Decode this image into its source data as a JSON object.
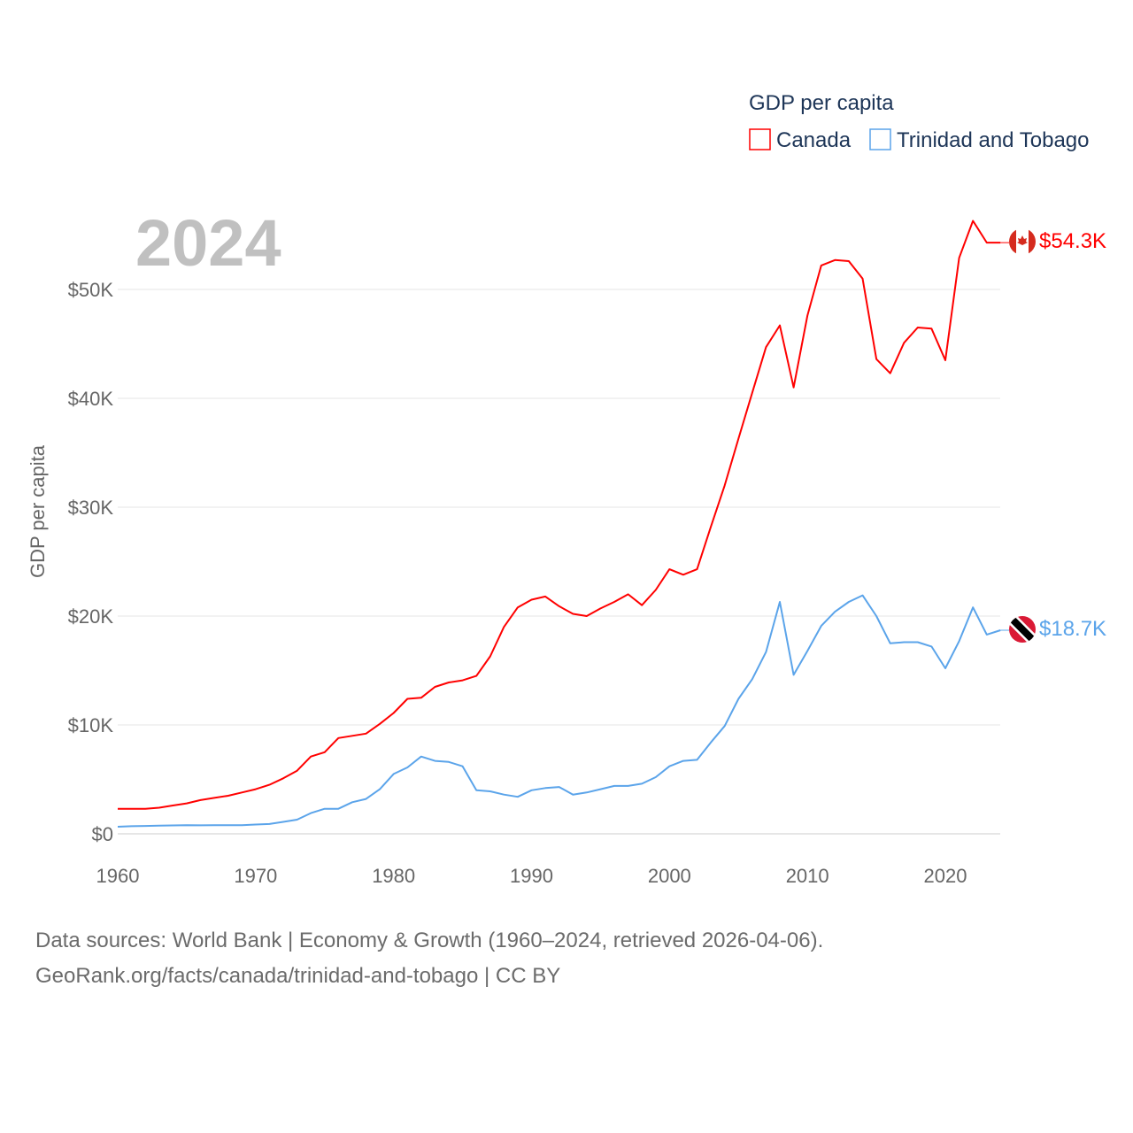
{
  "chart_data": {
    "type": "line",
    "title": "GDP per capita",
    "year_label": "2024",
    "xlabel": "",
    "ylabel": "GDP per capita",
    "xlim": [
      1960,
      2024
    ],
    "ylim": [
      0,
      57000
    ],
    "grid": true,
    "legend_position": "top-right",
    "x_ticks": [
      1960,
      1970,
      1980,
      1990,
      2000,
      2010,
      2020
    ],
    "x_tick_labels": [
      "1960",
      "1970",
      "1980",
      "1990",
      "2000",
      "2010",
      "2020"
    ],
    "y_ticks": [
      0,
      10000,
      20000,
      30000,
      40000,
      50000
    ],
    "y_tick_labels": [
      "$0",
      "$10K",
      "$20K",
      "$30K",
      "$40K",
      "$50K"
    ],
    "x": [
      1960,
      1961,
      1962,
      1963,
      1964,
      1965,
      1966,
      1967,
      1968,
      1969,
      1970,
      1971,
      1972,
      1973,
      1974,
      1975,
      1976,
      1977,
      1978,
      1979,
      1980,
      1981,
      1982,
      1983,
      1984,
      1985,
      1986,
      1987,
      1988,
      1989,
      1990,
      1991,
      1992,
      1993,
      1994,
      1995,
      1996,
      1997,
      1998,
      1999,
      2000,
      2001,
      2002,
      2003,
      2004,
      2005,
      2006,
      2007,
      2008,
      2009,
      2010,
      2011,
      2012,
      2013,
      2014,
      2015,
      2016,
      2017,
      2018,
      2019,
      2020,
      2021,
      2022,
      2023,
      2024
    ],
    "series": [
      {
        "name": "Canada",
        "color": "#ff0000",
        "end_label": "$54.3K",
        "flag": "canada-flag",
        "values": [
          2300,
          2290,
          2300,
          2400,
          2600,
          2800,
          3100,
          3300,
          3500,
          3800,
          4100,
          4500,
          5100,
          5800,
          7100,
          7500,
          8800,
          9000,
          9200,
          10100,
          11100,
          12400,
          12500,
          13500,
          13900,
          14100,
          14500,
          16300,
          19000,
          20800,
          21500,
          21800,
          20900,
          20200,
          20000,
          20700,
          21300,
          22000,
          21000,
          22400,
          24300,
          23800,
          24300,
          28200,
          32000,
          36300,
          40500,
          44700,
          46700,
          41000,
          47600,
          52200,
          52700,
          52600,
          51000,
          43600,
          42300,
          45100,
          46500,
          46400,
          43500,
          52900,
          56300,
          54300,
          54300
        ]
      },
      {
        "name": "Trinidad and Tobago",
        "color": "#5ba4ea",
        "end_label": "$18.7K",
        "flag": "trinidad-and-tobago-flag",
        "values": [
          650,
          700,
          720,
          750,
          770,
          800,
          780,
          800,
          800,
          800,
          850,
          900,
          1100,
          1300,
          1900,
          2300,
          2300,
          2900,
          3200,
          4100,
          5500,
          6100,
          7100,
          6700,
          6600,
          6200,
          4000,
          3900,
          3600,
          3400,
          4000,
          4200,
          4300,
          3600,
          3800,
          4100,
          4400,
          4400,
          4600,
          5200,
          6200,
          6700,
          6800,
          8400,
          9900,
          12400,
          14200,
          16700,
          21300,
          14600,
          16800,
          19100,
          20400,
          21300,
          21900,
          20000,
          17500,
          17600,
          17600,
          17200,
          15200,
          17700,
          20800,
          18300,
          18700
        ]
      }
    ]
  },
  "footer": {
    "line1": "Data sources: World Bank | Economy & Growth (1960–2024, retrieved 2026-04-06).",
    "line2": "GeoRank.org/facts/canada/trinidad-and-tobago | CC BY"
  }
}
